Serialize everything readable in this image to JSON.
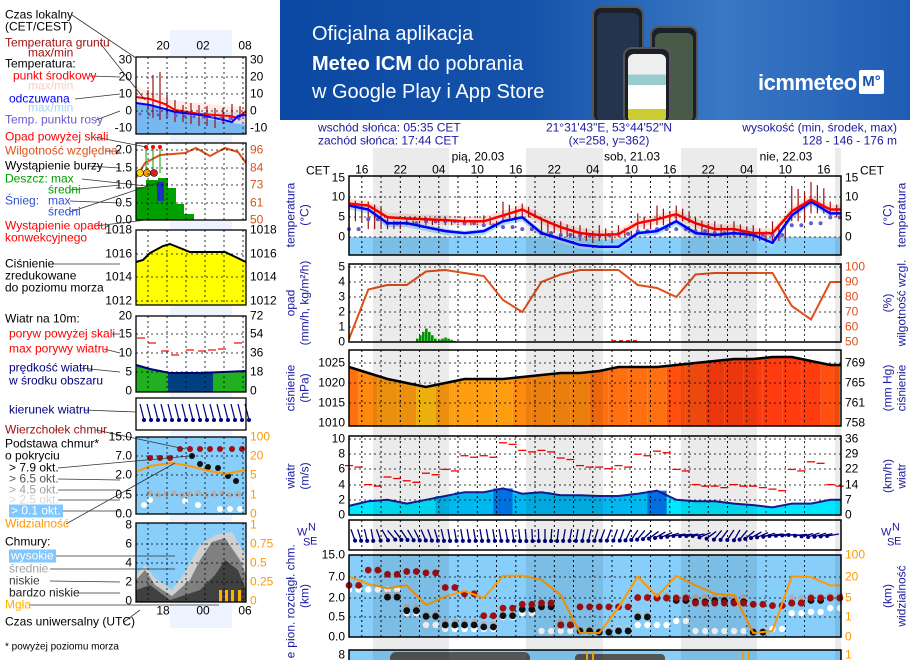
{
  "banner": {
    "line1": "Oficjalna aplikacja",
    "line2_bold": "Meteo ICM",
    "line2_rest": " do pobrania",
    "line3": "w Google Play i App Store",
    "logo_text": "icmmeteo",
    "logo_badge": "M°"
  },
  "info": {
    "sunrise": "wschód słońca: 05:35 CET",
    "sunset": "zachód słońca: 17:44 CET",
    "coords": "21°31'43\"E, 53°44'52\"N",
    "grid": "(x=258,  y=362)",
    "elev_label": "wysokość (min, środek, max)",
    "elev_values": "128 - 146 - 176 m"
  },
  "timeline": {
    "tz_left": "CET",
    "tz_right": "CET",
    "hours": [
      "16",
      "22",
      "04",
      "10",
      "16",
      "22",
      "04",
      "10",
      "16",
      "22",
      "04",
      "10",
      "16"
    ],
    "days": [
      "pią, 20.03",
      "sob, 21.03",
      "nie, 22.03"
    ]
  },
  "axis_labels": {
    "temp_left": [
      "temperatura",
      "(°C)"
    ],
    "temp_right": [
      "(°C)",
      "temperatura"
    ],
    "precip_left": [
      "opad",
      "(mm/h, kg/m²/h)"
    ],
    "precip_right": [
      "(%)",
      "wilgotność wzgl."
    ],
    "press_left": [
      "ciśnienie",
      "(hPa)"
    ],
    "press_right": [
      "(mm Hg)",
      "ciśnienie"
    ],
    "wind_left": [
      "wiatr",
      "(m/s)"
    ],
    "wind_right": [
      "(km/h)",
      "wiatr"
    ],
    "compass": {
      "n": "N",
      "w": "W",
      "s": "S",
      "e": "E"
    },
    "cloud_left": [
      "pion. rozciągł. chm.",
      "(km)"
    ],
    "cloud_right": [
      "(km)",
      "widzialność"
    ],
    "bottom_left": "e"
  },
  "ticks": {
    "temp": [
      "15",
      "10",
      "5",
      "0"
    ],
    "precip": [
      "5",
      "4",
      "3",
      "2",
      "1",
      "0"
    ],
    "humidity": [
      "100",
      "90",
      "80",
      "70",
      "60",
      "50"
    ],
    "press": [
      "1025",
      "1020",
      "1015",
      "1010"
    ],
    "press_mmhg": [
      "769",
      "765",
      "761",
      "758"
    ],
    "wind": [
      "10",
      "8",
      "6",
      "4",
      "2",
      "0"
    ],
    "wind_kmh": [
      "36",
      "29",
      "22",
      "14",
      "7",
      "0"
    ],
    "cloud": [
      "15.0",
      "7.0",
      "2.0",
      "0.5",
      "0.0"
    ],
    "vis": [
      "100",
      "20",
      "5",
      "1",
      "0"
    ],
    "bottom_left": "8",
    "bottom_right": "1"
  },
  "legend": {
    "items": [
      {
        "text": "Czas lokalny",
        "color": "#000000"
      },
      {
        "text": "(CET/CEST)",
        "color": "#000000"
      },
      {
        "text": "Temperatura gruntu",
        "color": "#a01010"
      },
      {
        "text": "max/min",
        "color": "#a01010"
      },
      {
        "text": "Temperatura:",
        "color": "#000000"
      },
      {
        "text": "punkt środkowy",
        "color": "#ff0000"
      },
      {
        "text": "max/min",
        "color": "#ffcdbd"
      },
      {
        "text": "odczuwana",
        "color": "#0000ff"
      },
      {
        "text": "max/min",
        "color": "#9fd6ff"
      },
      {
        "text": "Temp. punktu rosy",
        "color": "#6a5acd"
      },
      {
        "text": "Opad powyżej skali",
        "color": "#ff0000"
      },
      {
        "text": "Wilgotność względna",
        "color": "#e0501a"
      },
      {
        "text": "Wystąpienie burzy",
        "color": "#000000"
      },
      {
        "text": "Deszcz: max",
        "color": "#00a000"
      },
      {
        "text": "średni",
        "color": "#00a000"
      },
      {
        "text": "Śnieg:",
        "color": "#3050d0"
      },
      {
        "text": "max",
        "color": "#3050d0"
      },
      {
        "text": "średni",
        "color": "#3050d0"
      },
      {
        "text": "Wystąpienie opadu",
        "color": "#ff0000"
      },
      {
        "text": "konwekcyjnego",
        "color": "#ff0000"
      },
      {
        "text": "Ciśnienie",
        "color": "#000000"
      },
      {
        "text": "zredukowane",
        "color": "#000000"
      },
      {
        "text": "do poziomu morza",
        "color": "#000000"
      },
      {
        "text": "Wiatr na 10m:",
        "color": "#000000"
      },
      {
        "text": "poryw powyżej skali",
        "color": "#ff0000"
      },
      {
        "text": "max porywy wiatru",
        "color": "#ff0000"
      },
      {
        "text": "prędkość wiatru",
        "color": "#000080"
      },
      {
        "text": "w środku obszaru",
        "color": "#000080"
      },
      {
        "text": "kierunek wiatru",
        "color": "#000080"
      },
      {
        "text": "Wierzchołek chmur",
        "color": "#a01010"
      },
      {
        "text": "Podstawa chmur*",
        "color": "#000000"
      },
      {
        "text": "o pokryciu",
        "color": "#000000"
      },
      {
        "text": "> 7.9 okt.",
        "color": "#000000"
      },
      {
        "text": "> 6.5 okt.",
        "color": "#505050"
      },
      {
        "text": "> 4.5 okt.",
        "color": "#a0a0a0"
      },
      {
        "text": "> 2.5 okt.",
        "color": "#d8d8d8"
      },
      {
        "text": "> 0.1 okt.",
        "color": "#ffffff",
        "bg": "#80c8ff"
      },
      {
        "text": "Widzialność",
        "color": "#ff9900"
      },
      {
        "text": "Chmury:",
        "color": "#000000"
      },
      {
        "text": "wysokie",
        "color": "#ffffff",
        "bg": "#80c8ff"
      },
      {
        "text": "średnie",
        "color": "#a0a0a0"
      },
      {
        "text": "niskie",
        "color": "#404040"
      },
      {
        "text": "bardzo niskie",
        "color": "#202020"
      },
      {
        "text": "Mgła",
        "color": "#ffb000"
      },
      {
        "text": "Czas uniwersalny (UTC)",
        "color": "#000000"
      },
      {
        "text": "* powyżej poziomu morza",
        "color": "#000000"
      }
    ],
    "local_hours": [
      "20",
      "02",
      "08"
    ],
    "utc_hours": [
      "18",
      "00",
      "06"
    ],
    "mini_ticks": {
      "temp": [
        "30",
        "20",
        "10",
        "0",
        "-10"
      ],
      "precip": [
        "2.0",
        "1.5",
        "1.0",
        "0.5",
        "0.0"
      ],
      "humidity": [
        "96",
        "84",
        "73",
        "61",
        "50"
      ],
      "press": [
        "1018",
        "1016",
        "1014",
        "1012"
      ],
      "wind": [
        "20",
        "15",
        "10",
        "5",
        "0"
      ],
      "wind_kmh": [
        "72",
        "54",
        "36",
        "18",
        "0"
      ],
      "cloud": [
        "15.0",
        "7.0",
        "2.0",
        "0.5",
        "0.0"
      ],
      "vis": [
        "100",
        "20",
        "5",
        "1",
        "0"
      ],
      "clouds": [
        "8",
        "6",
        "4",
        "2",
        "0"
      ],
      "fog": [
        "1",
        "0.75",
        "0.5",
        "0.25",
        "0"
      ]
    }
  },
  "colors": {
    "temp": "#ff0000",
    "feels": "#0000ff",
    "dew": "#6a5acd",
    "ground": "#a01010",
    "humidity": "#e0501a",
    "rain": "#00a000",
    "wind": "#000080",
    "gust": "#ff0000",
    "cloud_top": "#a01010",
    "visibility": "#ff9900",
    "sky": "#87cefa"
  },
  "chart_data": {
    "type": "line",
    "x": [
      "19.03 14:00",
      "19.03 17:00",
      "19.03 20:00",
      "19.03 23:00",
      "20.03 02:00",
      "20.03 05:00",
      "20.03 08:00",
      "20.03 11:00",
      "20.03 14:00",
      "20.03 17:00",
      "20.03 20:00",
      "20.03 23:00",
      "21.03 02:00",
      "21.03 05:00",
      "21.03 08:00",
      "21.03 11:00",
      "21.03 14:00",
      "21.03 17:00",
      "21.03 20:00",
      "21.03 23:00",
      "22.03 02:00",
      "22.03 05:00",
      "22.03 08:00",
      "22.03 11:00",
      "22.03 14:00",
      "22.03 17:00"
    ],
    "temperature_C": [
      8.5,
      8,
      5,
      4.7,
      4.5,
      4.3,
      4,
      4,
      5.5,
      7,
      4.5,
      2.5,
      1,
      0.5,
      0.7,
      3.5,
      4.5,
      5.8,
      3.5,
      2,
      2,
      1,
      1,
      6.5,
      9.5,
      7
    ],
    "feels_like_C": [
      8,
      7,
      3.5,
      3.5,
      2.5,
      1.5,
      1,
      1.5,
      4,
      5,
      1,
      -0.5,
      -2,
      -2.5,
      -2.5,
      1,
      1.5,
      4,
      1,
      0.5,
      1,
      0.5,
      -1.5,
      5.5,
      9,
      6
    ],
    "dew_point_C": [
      2,
      4.5,
      3.5,
      3.5,
      4,
      4,
      3.5,
      3,
      2.5,
      2,
      1,
      0.5,
      0.3,
      0.5,
      0.8,
      1.5,
      2,
      2,
      1.5,
      1,
      1,
      0.5,
      0.5,
      3,
      3.5,
      5
    ],
    "ground_temp_max_C": [
      10,
      9,
      5,
      5,
      5,
      5,
      5,
      5.5,
      9,
      8.5,
      5,
      4,
      3,
      3,
      3,
      6,
      8,
      8,
      5,
      4,
      4,
      3,
      4,
      13,
      14,
      9
    ],
    "ground_temp_min_C": [
      4,
      2,
      2,
      3,
      3,
      3,
      3,
      3,
      4,
      5,
      1,
      0,
      -1,
      -1,
      0,
      2,
      3,
      4,
      1,
      0,
      0,
      -1,
      -1,
      4,
      6,
      5
    ],
    "precip_mm_h": [
      0,
      0,
      0,
      0,
      0.9,
      0.3,
      0,
      0,
      0,
      0,
      0,
      0,
      0,
      0,
      0,
      0,
      0,
      0,
      0,
      0,
      0,
      0,
      0,
      0,
      0,
      0
    ],
    "humidity_pct": [
      52,
      85,
      88,
      88,
      97,
      98,
      96,
      94,
      78,
      70,
      90,
      95,
      98,
      98,
      98,
      88,
      86,
      80,
      95,
      96,
      96,
      96,
      96,
      74,
      65,
      90
    ],
    "pressure_hPa": [
      1024,
      1022.5,
      1021,
      1020,
      1019,
      1020,
      1021,
      1021,
      1021,
      1021.5,
      1022,
      1022.5,
      1022.5,
      1023,
      1024,
      1024,
      1024,
      1024.5,
      1025,
      1025.5,
      1026,
      1026,
      1026.5,
      1026.5,
      1025.5,
      1024.5
    ],
    "wind_speed_ms": [
      1.2,
      1.8,
      2,
      1.5,
      2,
      2.5,
      3,
      3,
      3.5,
      2.8,
      3,
      2.6,
      2.6,
      2.5,
      2.5,
      2.8,
      3.2,
      2,
      1.8,
      1.8,
      1.5,
      1.3,
      1,
      1.5,
      1.5,
      2
    ],
    "wind_gust_ms": [
      6.5,
      4,
      5,
      4.5,
      5.5,
      6,
      7.8,
      7.8,
      9.5,
      8.5,
      8.5,
      7.5,
      6.5,
      6.3,
      6.5,
      8,
      8.4,
      6,
      4,
      3.8,
      4,
      3.8,
      3.4,
      6,
      7,
      4
    ],
    "wind_dir_deg": [
      340,
      350,
      320,
      330,
      340,
      350,
      350,
      350,
      350,
      355,
      0,
      10,
      10,
      20,
      20,
      40,
      60,
      80,
      80,
      40,
      30,
      60,
      80,
      90,
      70,
      80
    ],
    "cloud_top_km": [
      5,
      9.5,
      8,
      9,
      8.5,
      4.5,
      3,
      0.6,
      1.2,
      1.5,
      1.6,
      0.3,
      1.3,
      1.3,
      1.3,
      2.1,
      2,
      2,
      1.6,
      1.6,
      1.6,
      1.5,
      1.4,
      1.6,
      2,
      2
    ],
    "cloud_base_km": [
      null,
      null,
      2.2,
      1.0,
      0.55,
      0.3,
      0.3,
      0.25,
      0.6,
      1.1,
      1.3,
      0.3,
      0.15,
      0.12,
      0.15,
      0.5,
      2.0,
      1.8,
      1.7,
      1.8,
      1.7,
      0.12,
      null,
      1.6,
      1.8,
      2.0
    ],
    "cloud_base_thin_km": [
      4,
      4,
      4,
      0.8,
      0.3,
      0.2,
      0.2,
      0.2,
      0.5,
      0.8,
      0.15,
      0.15,
      0.15,
      0.15,
      0.2,
      0.3,
      0.3,
      0.4,
      0.15,
      0.15,
      0.15,
      0.15,
      0.2,
      0.8,
      0.9,
      1.2
    ],
    "visibility_km": [
      22,
      15,
      12,
      14,
      3.5,
      6,
      10,
      5,
      24,
      25,
      18,
      7,
      0.2,
      0.2,
      3,
      22,
      6,
      24,
      14,
      8,
      7,
      0.2,
      0.3,
      22,
      20,
      14
    ]
  }
}
